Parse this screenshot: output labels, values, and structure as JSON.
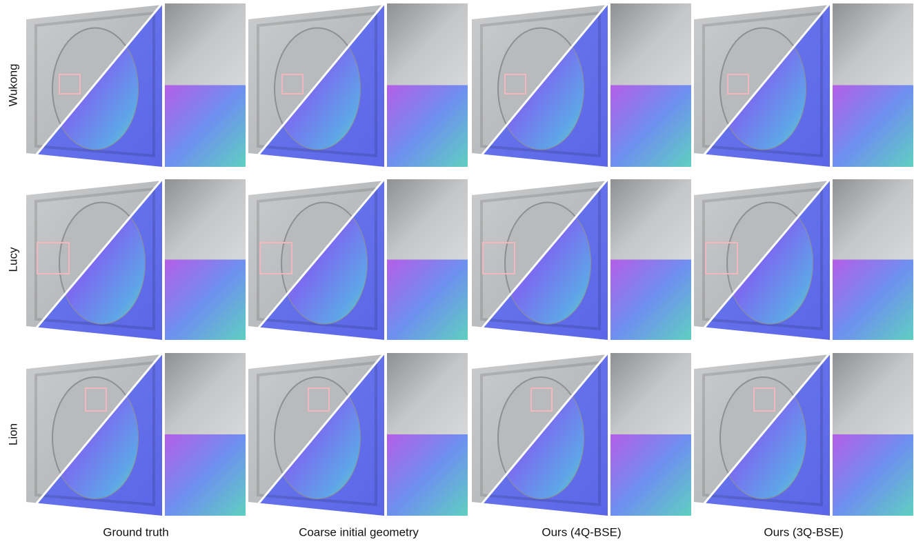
{
  "row_labels": [
    "Wukong",
    "Lucy",
    "Lion"
  ],
  "column_labels": [
    "Ground truth",
    "Coarse initial geometry",
    "Ours (4Q-BSE)",
    "Ours (3Q-BSE)"
  ]
}
